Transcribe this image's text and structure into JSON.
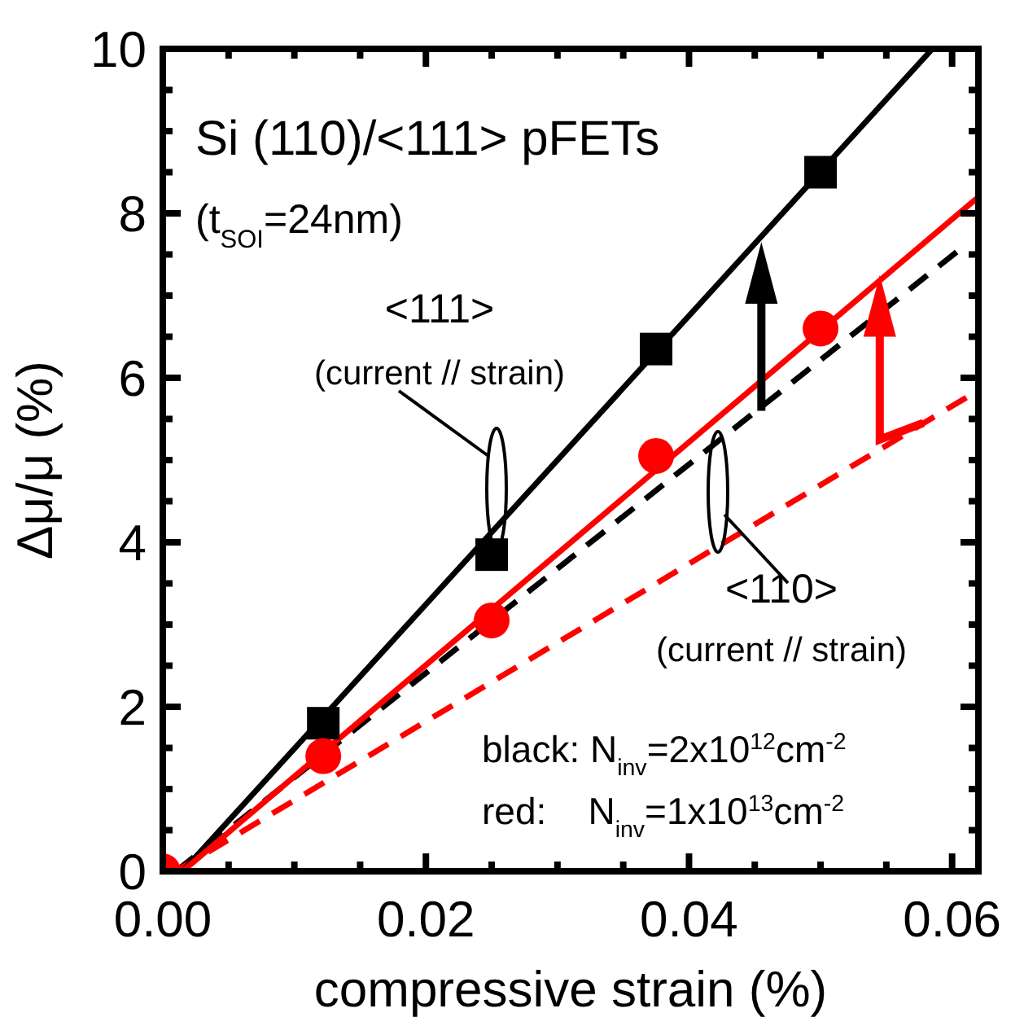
{
  "chart_data": {
    "type": "scatter",
    "xlabel": "compressive strain (%)",
    "ylabel": "Δμ/μ (%)",
    "xlim": [
      0,
      0.062
    ],
    "ylim": [
      0,
      10
    ],
    "xticks": [
      {
        "value": 0,
        "label": "0.00"
      },
      {
        "value": 0.005,
        "label": null
      },
      {
        "value": 0.01,
        "label": null
      },
      {
        "value": 0.015,
        "label": null
      },
      {
        "value": 0.02,
        "label": "0.02"
      },
      {
        "value": 0.025,
        "label": null
      },
      {
        "value": 0.03,
        "label": null
      },
      {
        "value": 0.035,
        "label": null
      },
      {
        "value": 0.04,
        "label": "0.04"
      },
      {
        "value": 0.045,
        "label": null
      },
      {
        "value": 0.05,
        "label": null
      },
      {
        "value": 0.055,
        "label": null
      },
      {
        "value": 0.06,
        "label": "0.06"
      }
    ],
    "yticks": [
      0,
      {
        "value": 0.5,
        "label": null
      },
      {
        "value": 1,
        "label": null
      },
      {
        "value": 1.5,
        "label": null
      },
      2,
      {
        "value": 2.5,
        "label": null
      },
      {
        "value": 3,
        "label": null
      },
      {
        "value": 3.5,
        "label": null
      },
      4,
      {
        "value": 4.5,
        "label": null
      },
      {
        "value": 5,
        "label": null
      },
      {
        "value": 5.5,
        "label": null
      },
      6,
      {
        "value": 6.5,
        "label": null
      },
      {
        "value": 7,
        "label": null
      },
      {
        "value": 7.5,
        "label": null
      },
      8,
      {
        "value": 8.5,
        "label": null
      },
      {
        "value": 9,
        "label": null
      },
      {
        "value": 9.5,
        "label": null
      },
      10
    ],
    "series": [
      {
        "type": "line",
        "color": "#000000",
        "line_style": "dashed",
        "x": [
          0.001,
          0.0605
        ],
        "values": [
          0,
          7.55
        ]
      },
      {
        "type": "line",
        "color": "#ff0000",
        "line_style": "dashed",
        "x": [
          0.001,
          0.0615
        ],
        "values": [
          0,
          5.8
        ]
      },
      {
        "type": "line",
        "color": "#000000",
        "line_style": "solid",
        "x": [
          0.0015,
          0.0585
        ],
        "values": [
          0,
          10
        ]
      },
      {
        "type": "line",
        "color": "#ff0000",
        "line_style": "solid",
        "x": [
          0.0015,
          0.062
        ],
        "values": [
          0,
          8.2
        ]
      },
      {
        "color": "#000000",
        "marker": "square",
        "x": [
          0.0122,
          0.025,
          0.0375,
          0.05
        ],
        "values": [
          1.8,
          3.85,
          6.35,
          8.5
        ]
      },
      {
        "color": "#ff0000",
        "marker": "circle",
        "x": [
          0,
          0.0122,
          0.025,
          0.0375,
          0.05
        ],
        "values": [
          0,
          1.4,
          3.05,
          5.05,
          6.6
        ]
      }
    ],
    "annotations": [
      "Si (110)/<111> pFETs",
      "(t$_{SOI}$=24nm)",
      "<111>",
      "(current // strain)",
      "<110>",
      "(current // strain)",
      "black: N$_{inv}$=2x10$^{12}$cm$^{-2}$",
      "red:    N$_{inv}$=1x10$^{13}$cm$^{-2}$"
    ]
  }
}
